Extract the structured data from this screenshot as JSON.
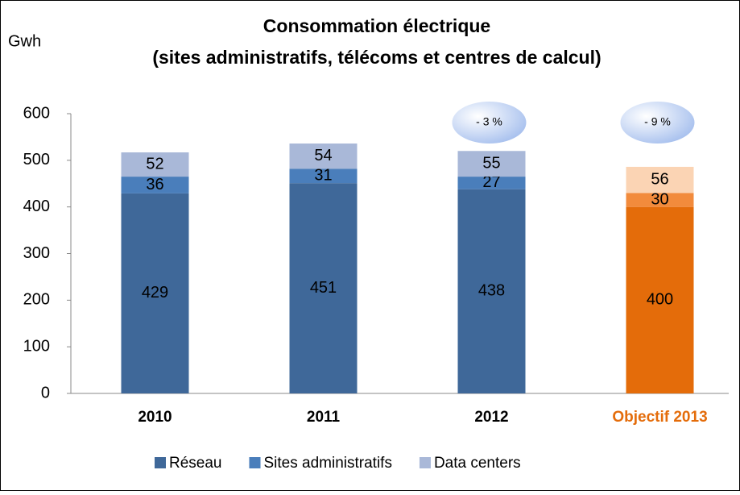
{
  "chart_data": {
    "type": "stacked_bar",
    "title": [
      "Consommation électrique",
      "(sites administratifs, télécoms et centres de calcul)"
    ],
    "y_label": "Gwh",
    "categories": [
      "2010",
      "2011",
      "2012",
      "Objectif 2013"
    ],
    "category_colors": [
      "#000000",
      "#000000",
      "#000000",
      "#e46c0a"
    ],
    "series": [
      {
        "name": "Réseau",
        "color": "#3f6899",
        "colors": [
          "#3f6899",
          "#3f6899",
          "#3f6899",
          "#e46c0a"
        ],
        "values": [
          429,
          451,
          438,
          400
        ]
      },
      {
        "name": "Sites administratifs",
        "color": "#4a7ebb",
        "colors": [
          "#4a7ebb",
          "#4a7ebb",
          "#4a7ebb",
          "#f28b3c"
        ],
        "values": [
          36,
          31,
          27,
          30
        ]
      },
      {
        "name": "Data centers",
        "color": "#a9b8d8",
        "colors": [
          "#a9b8d8",
          "#a9b8d8",
          "#a9b8d8",
          "#fbd4b4"
        ],
        "values": [
          52,
          54,
          55,
          56
        ]
      }
    ],
    "annotations": [
      {
        "text": "- 3 %",
        "category": "2012"
      },
      {
        "text": "- 9 %",
        "category": "Objectif 2013"
      }
    ],
    "ylim": [
      0,
      600
    ],
    "yticks": [
      0,
      100,
      200,
      300,
      400,
      500,
      600
    ],
    "grid": false,
    "legend": "bottom"
  }
}
